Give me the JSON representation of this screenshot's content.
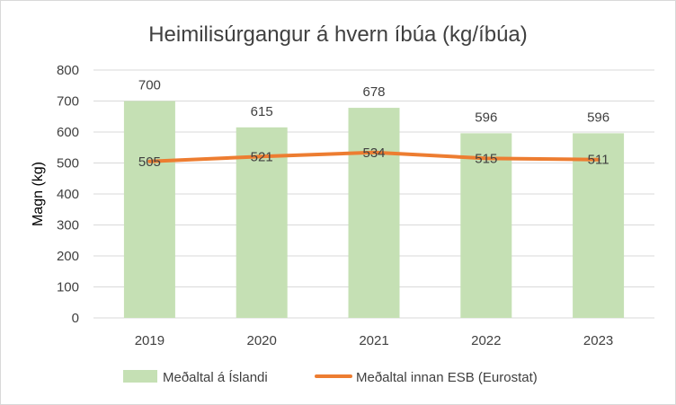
{
  "chart_data": {
    "type": "bar",
    "title": "Heimilisúrgangur á hvern íbúa (kg/íbúa)",
    "xlabel": "",
    "ylabel": "Magn (kg)",
    "categories": [
      "2019",
      "2020",
      "2021",
      "2022",
      "2023"
    ],
    "ylim": [
      0,
      800
    ],
    "yticks": [
      0,
      100,
      200,
      300,
      400,
      500,
      600,
      700,
      800
    ],
    "grid": true,
    "legend_position": "bottom",
    "series": [
      {
        "name": "Meðaltal á Íslandi",
        "type": "bar",
        "color": "#c5e0b4",
        "values": [
          700,
          615,
          678,
          596,
          596
        ],
        "labels": [
          "700",
          "615",
          "678",
          "596",
          "596"
        ]
      },
      {
        "name": "Meðaltal innan ESB (Eurostat)",
        "type": "line",
        "color": "#ed7d31",
        "values": [
          505,
          521,
          534,
          515,
          511
        ],
        "labels": [
          "505",
          "521",
          "534",
          "515",
          "511"
        ]
      }
    ]
  }
}
